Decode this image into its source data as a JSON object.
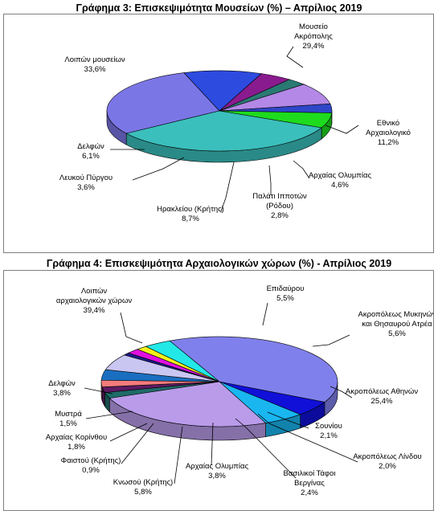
{
  "chart_data": [
    {
      "type": "pie",
      "title": "Γράφημα 3: Επισκεψιμότητα Μουσείων (%) – Απρίλιος 2019",
      "slices": [
        {
          "label": [
            "Μουσείο",
            "Ακρόπολης"
          ],
          "value": 29.4,
          "value_text": "29,4%",
          "color": "#7B76E6"
        },
        {
          "label": [
            "Εθνικό",
            "Αρχαιολογικό"
          ],
          "value": 11.2,
          "value_text": "11,2%",
          "color": "#2E4BE0"
        },
        {
          "label": [
            "Αρχαίας Ολυμπίας"
          ],
          "value": 4.6,
          "value_text": "4,6%",
          "color": "#8A1B8F"
        },
        {
          "label": [
            "Παλάτι Ιπποτών",
            "(Ρόδου)"
          ],
          "value": 2.8,
          "value_text": "2,8%",
          "color": "#2A7A74"
        },
        {
          "label": [
            "Ηρακλείου (Κρήτης)"
          ],
          "value": 8.7,
          "value_text": "8,7%",
          "color": "#B388E6"
        },
        {
          "label": [
            "Λευκού Πύργου"
          ],
          "value": 3.6,
          "value_text": "3,6%",
          "color": "#2E46C8"
        },
        {
          "label": [
            "Δελφών"
          ],
          "value": 6.1,
          "value_text": "6,1%",
          "color": "#1EDB1E"
        },
        {
          "label": [
            "Λοιπών μουσείων"
          ],
          "value": 33.6,
          "value_text": "33,6%",
          "color": "#3BBFBC"
        }
      ]
    },
    {
      "type": "pie",
      "title": "Γράφημα 4: Επισκεψιμότητα Αρχαιολογικών χώρων (%) - Απρίλιος 2019",
      "slices": [
        {
          "label": [
            "Επιδαύρου"
          ],
          "value": 5.5,
          "value_text": "5,5%",
          "color": "#1010D8"
        },
        {
          "label": [
            "Ακροπόλεως Μυκηνών",
            "και Θησαυρού Ατρέα"
          ],
          "value": 5.6,
          "value_text": "5,6%",
          "color": "#19B6F0"
        },
        {
          "label": [
            "Ακροπόλεως Αθηνών"
          ],
          "value": 25.4,
          "value_text": "25,4%",
          "color": "#B99BEA"
        },
        {
          "label": [
            "Σουνίου"
          ],
          "value": 2.1,
          "value_text": "2,1%",
          "color": "#1E6B68"
        },
        {
          "label": [
            "Ακροπόλεως Λίνδου"
          ],
          "value": 2.0,
          "value_text": "2,0%",
          "color": "#5E1A63"
        },
        {
          "label": [
            "Βασιλικοί Τάφοι",
            "Βεργίνας"
          ],
          "value": 2.4,
          "value_text": "2,4%",
          "color": "#F47C7C"
        },
        {
          "label": [
            "Αρχαίας Ολυμπίας"
          ],
          "value": 3.8,
          "value_text": "3,8%",
          "color": "#1A6EC0"
        },
        {
          "label": [
            "Κνωσού (Κρήτης)"
          ],
          "value": 5.8,
          "value_text": "5,8%",
          "color": "#C9C6F2"
        },
        {
          "label": [
            "Φαιστού (Κρήτης)"
          ],
          "value": 0.9,
          "value_text": "0,9%",
          "color": "#1B1B8A"
        },
        {
          "label": [
            "Αρχαίας Κορίνθου"
          ],
          "value": 1.8,
          "value_text": "1,8%",
          "color": "#E010E0"
        },
        {
          "label": [
            "Μυστρά"
          ],
          "value": 1.5,
          "value_text": "1,5%",
          "color": "#F2F21A"
        },
        {
          "label": [
            "Δελφών"
          ],
          "value": 3.8,
          "value_text": "3,8%",
          "color": "#22E8E8"
        },
        {
          "label": [
            "Λοιπών",
            "αρχαιολογικών χώρων"
          ],
          "value": 39.4,
          "value_text": "39,4%",
          "color": "#8080EC"
        }
      ]
    }
  ]
}
